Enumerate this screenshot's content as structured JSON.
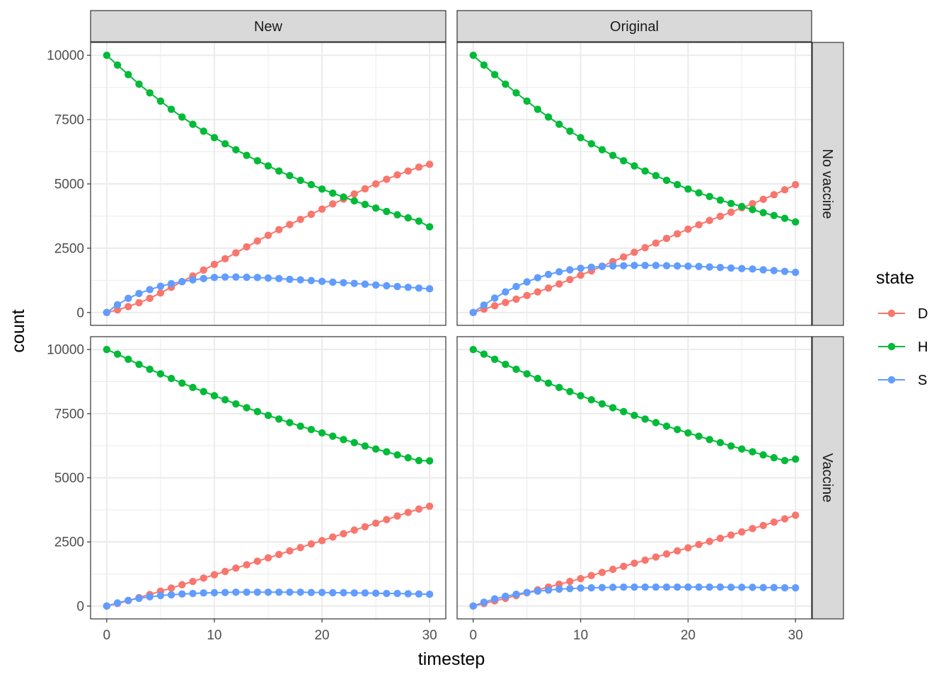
{
  "chart_data": {
    "type": "line",
    "xlabel": "timestep",
    "ylabel": "count",
    "xlim": [
      -1.5,
      31.5
    ],
    "ylim": [
      -500,
      10500
    ],
    "x_ticks": [
      0,
      10,
      20,
      30
    ],
    "x_tick_labels": [
      "0",
      "10",
      "20",
      "30"
    ],
    "y_ticks": [
      0,
      2500,
      5000,
      7500,
      10000
    ],
    "y_tick_labels": [
      "0",
      "2500",
      "5000",
      "7500",
      "10000"
    ],
    "grid": true,
    "facet_columns": [
      "New",
      "Original"
    ],
    "facet_rows": [
      "No vaccine",
      "Vaccine"
    ],
    "legend": {
      "title": "state",
      "position": "right",
      "entries": [
        {
          "label": "D",
          "color": "#F8766D"
        },
        {
          "label": "H",
          "color": "#00BA38"
        },
        {
          "label": "S",
          "color": "#619CFF"
        }
      ]
    },
    "x": [
      0,
      1,
      2,
      3,
      4,
      5,
      6,
      7,
      8,
      9,
      10,
      11,
      12,
      13,
      14,
      15,
      16,
      17,
      18,
      19,
      20,
      21,
      22,
      23,
      24,
      25,
      26,
      27,
      28,
      29,
      30
    ],
    "panels": [
      {
        "column": "New",
        "row": "No vaccine",
        "series": [
          {
            "name": "D",
            "values": [
              0,
              100,
              230,
              380,
              550,
              760,
              980,
              1200,
              1420,
              1650,
              1870,
              2090,
              2320,
              2550,
              2780,
              3000,
              3220,
              3420,
              3620,
              3820,
              4020,
              4220,
              4410,
              4610,
              4810,
              5000,
              5180,
              5350,
              5500,
              5650,
              5760
            ]
          },
          {
            "name": "H",
            "values": [
              10000,
              9620,
              9250,
              8880,
              8540,
              8220,
              7900,
              7600,
              7320,
              7050,
              6800,
              6560,
              6330,
              6110,
              5900,
              5700,
              5500,
              5320,
              5140,
              4970,
              4800,
              4640,
              4490,
              4340,
              4200,
              4060,
              3930,
              3800,
              3680,
              3550,
              3330
            ]
          },
          {
            "name": "S",
            "values": [
              0,
              300,
              550,
              740,
              890,
              1020,
              1120,
              1200,
              1270,
              1320,
              1360,
              1380,
              1380,
              1370,
              1360,
              1340,
              1320,
              1290,
              1270,
              1240,
              1210,
              1180,
              1160,
              1130,
              1100,
              1070,
              1040,
              1010,
              980,
              950,
              920
            ]
          }
        ]
      },
      {
        "column": "Original",
        "row": "No vaccine",
        "series": [
          {
            "name": "D",
            "values": [
              0,
              130,
              260,
              390,
              520,
              660,
              800,
              950,
              1110,
              1280,
              1450,
              1620,
              1800,
              1980,
              2160,
              2340,
              2520,
              2700,
              2880,
              3060,
              3240,
              3410,
              3580,
              3740,
              3900,
              4070,
              4230,
              4400,
              4580,
              4770,
              4970
            ]
          },
          {
            "name": "H",
            "values": [
              10000,
              9620,
              9250,
              8880,
              8540,
              8220,
              7900,
              7600,
              7320,
              7050,
              6800,
              6560,
              6330,
              6110,
              5900,
              5700,
              5500,
              5320,
              5140,
              4970,
              4800,
              4650,
              4510,
              4370,
              4240,
              4120,
              4000,
              3880,
              3770,
              3660,
              3520
            ]
          },
          {
            "name": "S",
            "values": [
              0,
              290,
              560,
              800,
              1010,
              1190,
              1350,
              1480,
              1580,
              1660,
              1720,
              1760,
              1790,
              1810,
              1820,
              1830,
              1830,
              1830,
              1820,
              1810,
              1800,
              1790,
              1770,
              1750,
              1730,
              1710,
              1690,
              1660,
              1630,
              1600,
              1560
            ]
          }
        ]
      },
      {
        "column": "New",
        "row": "Vaccine",
        "series": [
          {
            "name": "D",
            "values": [
              0,
              100,
              210,
              330,
              450,
              580,
              700,
              830,
              960,
              1090,
              1220,
              1350,
              1480,
              1610,
              1750,
              1880,
              2010,
              2150,
              2280,
              2420,
              2550,
              2690,
              2820,
              2960,
              3090,
              3230,
              3370,
              3510,
              3650,
              3780,
              3890
            ]
          },
          {
            "name": "H",
            "values": [
              10000,
              9820,
              9620,
              9420,
              9230,
              9050,
              8870,
              8690,
              8520,
              8360,
              8200,
              8040,
              7880,
              7730,
              7580,
              7430,
              7290,
              7150,
              7010,
              6880,
              6750,
              6620,
              6490,
              6370,
              6240,
              6120,
              6010,
              5890,
              5780,
              5670,
              5660
            ]
          },
          {
            "name": "S",
            "values": [
              0,
              120,
              220,
              300,
              360,
              410,
              440,
              470,
              490,
              510,
              520,
              530,
              540,
              540,
              540,
              540,
              540,
              540,
              540,
              530,
              530,
              520,
              520,
              510,
              510,
              500,
              490,
              490,
              480,
              470,
              460
            ]
          }
        ]
      },
      {
        "column": "Original",
        "row": "Vaccine",
        "series": [
          {
            "name": "D",
            "values": [
              0,
              100,
              200,
              300,
              410,
              520,
              630,
              740,
              850,
              960,
              1070,
              1190,
              1310,
              1430,
              1550,
              1670,
              1790,
              1910,
              2030,
              2150,
              2270,
              2400,
              2520,
              2640,
              2770,
              2890,
              3020,
              3140,
              3270,
              3400,
              3540
            ]
          },
          {
            "name": "H",
            "values": [
              10000,
              9820,
              9620,
              9420,
              9230,
              9050,
              8870,
              8690,
              8520,
              8360,
              8200,
              8040,
              7880,
              7730,
              7580,
              7430,
              7290,
              7150,
              7010,
              6880,
              6750,
              6620,
              6490,
              6370,
              6240,
              6120,
              6010,
              5890,
              5780,
              5670,
              5730
            ]
          },
          {
            "name": "S",
            "values": [
              0,
              150,
              280,
              380,
              460,
              530,
              580,
              620,
              660,
              680,
              700,
              710,
              720,
              730,
              740,
              740,
              740,
              740,
              740,
              740,
              740,
              740,
              740,
              740,
              730,
              730,
              730,
              720,
              720,
              710,
              710
            ]
          }
        ]
      }
    ]
  }
}
